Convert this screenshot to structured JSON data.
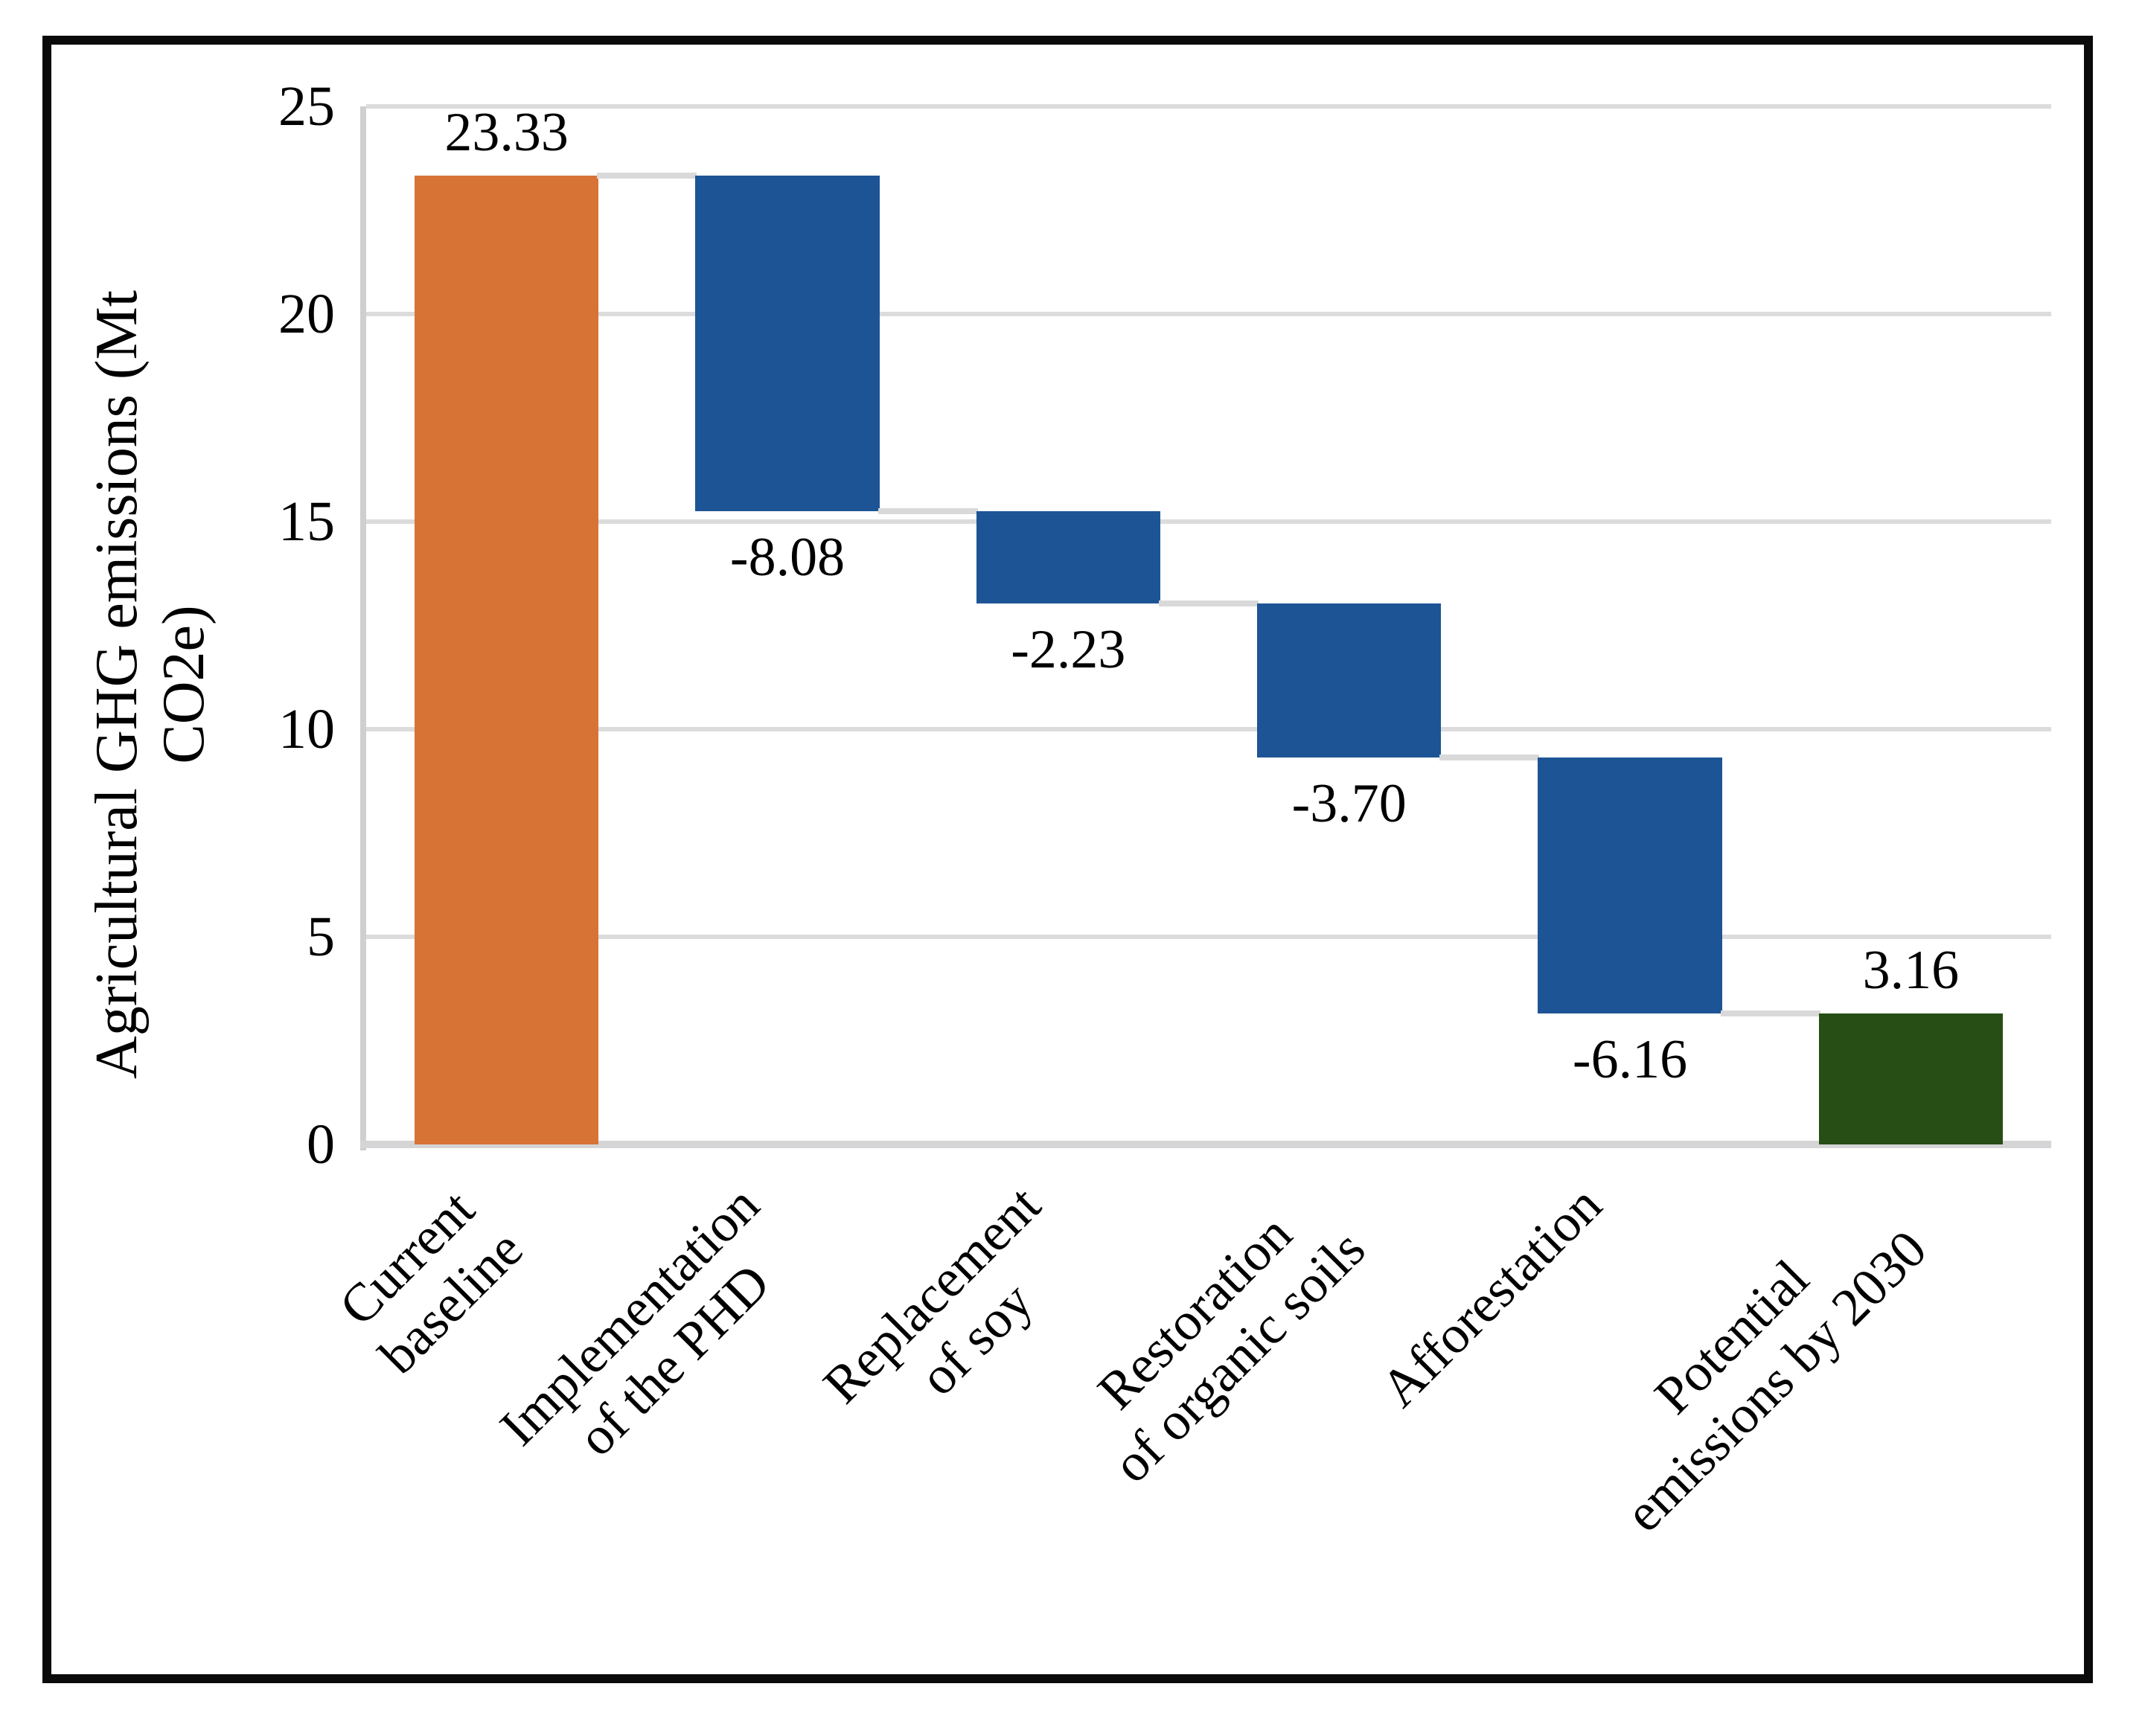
{
  "figure": {
    "border_color": "#0a0a0a",
    "background": "#ffffff"
  },
  "chart_data": {
    "type": "bar",
    "subtype": "waterfall",
    "title": "",
    "ylabel": "Agricultural GHG emissions (Mt CO2e)",
    "ylabel_display": "Agricultural GHG emissions (Mt\nCO2e)",
    "xlabel": "",
    "ylim": [
      0,
      25
    ],
    "yticks": [
      0,
      5,
      10,
      15,
      20,
      25
    ],
    "ytick_labels": [
      "0",
      "5",
      "10",
      "15",
      "20",
      "25"
    ],
    "grid": true,
    "legend": "none",
    "categories": [
      "Current baseline",
      "Implementation of the PHD",
      "Replacement of soy",
      "Restoration of organic soils",
      "Afforestation",
      "Potential emissions by 2030"
    ],
    "categories_display": [
      "Current\nbaseline",
      "Implementation\nof the PHD",
      "Replacement\nof soy",
      "Restoration\nof organic soils",
      "Afforestation",
      "Potential\nemissions by 2030"
    ],
    "series": [
      {
        "name": "Current baseline",
        "value": 23.33,
        "label": "23.33",
        "role": "increase",
        "color": "#D87336",
        "label_position": "above"
      },
      {
        "name": "Implementation of the PHD",
        "value": -8.08,
        "label": "-8.08",
        "role": "decrease",
        "color": "#1D5496",
        "label_position": "below"
      },
      {
        "name": "Replacement of soy",
        "value": -2.23,
        "label": "-2.23",
        "role": "decrease",
        "color": "#1D5496",
        "label_position": "below"
      },
      {
        "name": "Restoration of organic soils",
        "value": -3.7,
        "label": "-3.70",
        "role": "decrease",
        "color": "#1D5496",
        "label_position": "below"
      },
      {
        "name": "Afforestation",
        "value": -6.16,
        "label": "-6.16",
        "role": "decrease",
        "color": "#1D5496",
        "label_position": "below"
      },
      {
        "name": "Potential emissions by 2030",
        "value": 3.16,
        "label": "3.16",
        "role": "total",
        "color": "#274E15",
        "label_position": "above"
      }
    ],
    "colors": {
      "increase": "#D87336",
      "decrease": "#1D5496",
      "total": "#274E15",
      "gridline": "#DCDCDC",
      "axis_line": "#CFCFCF",
      "baseline": "#D5D5D7",
      "connector": "#D9D9D9",
      "text": "#000000",
      "border": "#0a0a0a"
    }
  }
}
